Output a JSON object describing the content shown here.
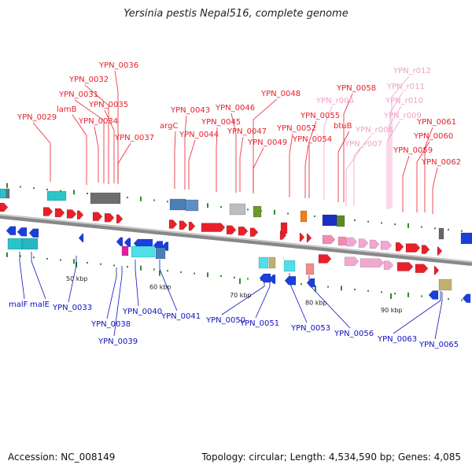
{
  "header": {
    "title": "Yersinia pestis Nepal516, complete genome"
  },
  "footer": {
    "accession": "Accession: NC_008149",
    "summary": "Topology: circular; Length: 4,534,590 bp; Genes: 4,085"
  },
  "colors": {
    "forward_label": "#e8202a",
    "rna_label": "#f2a0c8",
    "reverse_label": "#1010c0",
    "backbone": "#888888"
  },
  "scale_marks": [
    "50 kbp",
    "60 kbp",
    "70 kbp",
    "80 kbp",
    "90 kbp"
  ],
  "top_labels": [
    {
      "text": "YPN_0036",
      "kind": "gene"
    },
    {
      "text": "YPN_0032",
      "kind": "gene"
    },
    {
      "text": "YPN_0031",
      "kind": "gene"
    },
    {
      "text": "YPN_0035",
      "kind": "gene"
    },
    {
      "text": "lamB",
      "kind": "gene"
    },
    {
      "text": "YPN_0029",
      "kind": "gene"
    },
    {
      "text": "YPN_0034",
      "kind": "gene"
    },
    {
      "text": "YPN_0037",
      "kind": "gene"
    },
    {
      "text": "argC",
      "kind": "gene"
    },
    {
      "text": "YPN_0043",
      "kind": "gene"
    },
    {
      "text": "YPN_0044",
      "kind": "gene"
    },
    {
      "text": "YPN_0046",
      "kind": "gene"
    },
    {
      "text": "YPN_0045",
      "kind": "gene"
    },
    {
      "text": "YPN_0048",
      "kind": "gene"
    },
    {
      "text": "YPN_0047",
      "kind": "gene"
    },
    {
      "text": "YPN_0049",
      "kind": "gene"
    },
    {
      "text": "YPN_0052",
      "kind": "gene"
    },
    {
      "text": "YPN_0055",
      "kind": "gene"
    },
    {
      "text": "YPN_0054",
      "kind": "gene"
    },
    {
      "text": "YPN_0058",
      "kind": "gene"
    },
    {
      "text": "btuB",
      "kind": "gene"
    },
    {
      "text": "YPN_r006",
      "kind": "rna"
    },
    {
      "text": "YPN_r008",
      "kind": "rna"
    },
    {
      "text": "YPN_r007",
      "kind": "rna"
    },
    {
      "text": "YPN_r012",
      "kind": "rna"
    },
    {
      "text": "YPN_r011",
      "kind": "rna"
    },
    {
      "text": "YPN_r010",
      "kind": "rna"
    },
    {
      "text": "YPN_r009",
      "kind": "rna"
    },
    {
      "text": "YPN_0061",
      "kind": "gene"
    },
    {
      "text": "YPN_0060",
      "kind": "gene"
    },
    {
      "text": "YPN_0059",
      "kind": "gene"
    },
    {
      "text": "YPN_0062",
      "kind": "gene"
    }
  ],
  "bottom_labels": [
    {
      "text": "malF"
    },
    {
      "text": "malE"
    },
    {
      "text": "YPN_0033"
    },
    {
      "text": "YPN_0038"
    },
    {
      "text": "YPN_0039"
    },
    {
      "text": "YPN_0040"
    },
    {
      "text": "YPN_0041"
    },
    {
      "text": "YPN_0050"
    },
    {
      "text": "YPN_0051"
    },
    {
      "text": "YPN_0053"
    },
    {
      "text": "YPN_0056"
    },
    {
      "text": "YPN_0063"
    },
    {
      "text": "YPN_0065"
    }
  ]
}
